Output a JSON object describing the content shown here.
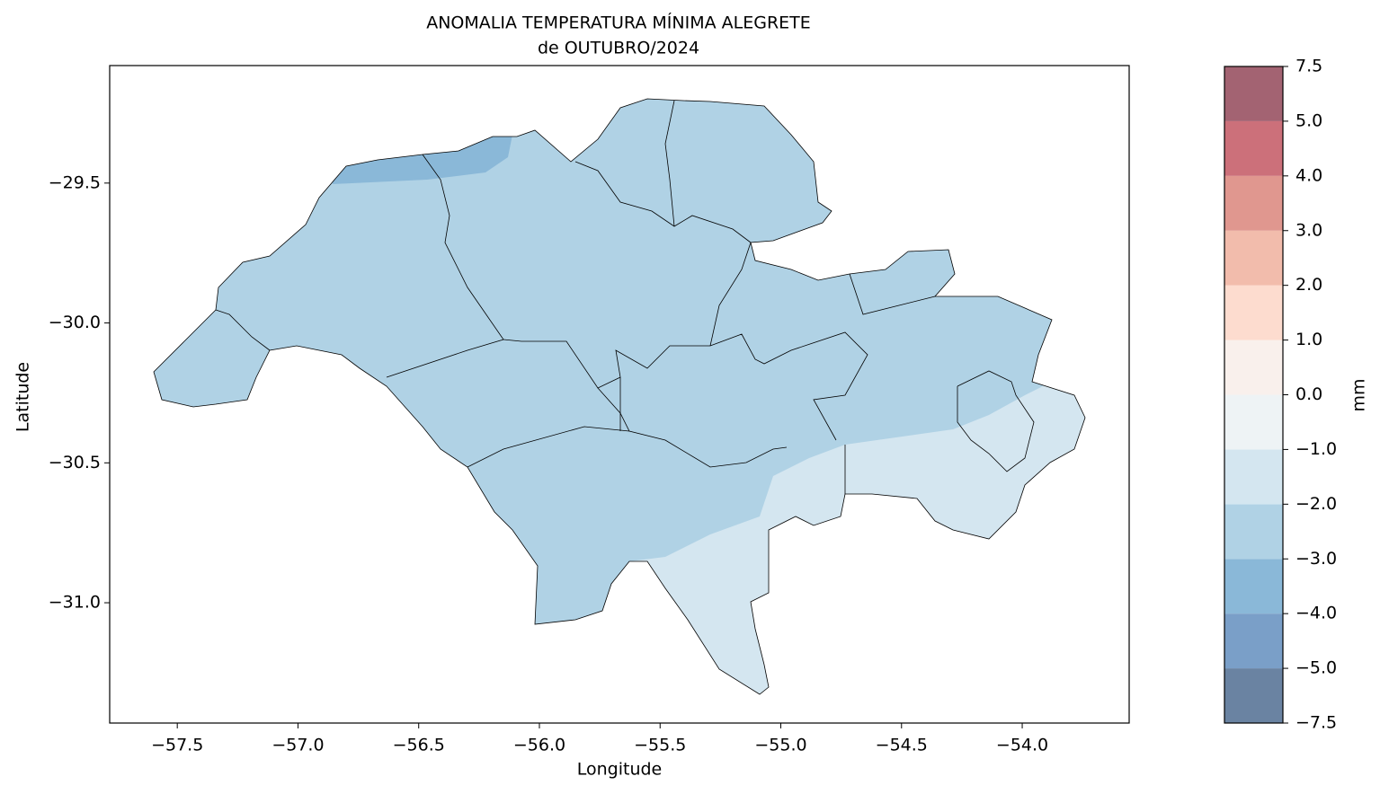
{
  "map": {
    "title": "ANOMALIA TEMPERATURA MÍNIMA ALEGRETE",
    "subtitle": "de OUTUBRO/2024",
    "xlabel": "Longitude",
    "ylabel": "Latitude",
    "xlim": [
      -57.78,
      -53.557
    ],
    "ylim": [
      -31.43,
      -29.08
    ],
    "xticks": [
      {
        "value": -57.5,
        "label": "−57.5"
      },
      {
        "value": -57.0,
        "label": "−57.0"
      },
      {
        "value": -56.5,
        "label": "−56.5"
      },
      {
        "value": -56.0,
        "label": "−56.0"
      },
      {
        "value": -55.5,
        "label": "−55.5"
      },
      {
        "value": -55.0,
        "label": "−55.0"
      },
      {
        "value": -54.5,
        "label": "−54.5"
      },
      {
        "value": -54.0,
        "label": "−54.0"
      }
    ],
    "yticks": [
      {
        "value": -29.5,
        "label": "−29.5"
      },
      {
        "value": -30.0,
        "label": "−30.0"
      },
      {
        "value": -30.5,
        "label": "−30.5"
      },
      {
        "value": -31.0,
        "label": "−31.0"
      }
    ],
    "colorbar": {
      "label": "mm",
      "ticks": [
        {
          "value": -7.5,
          "label": "−7.5"
        },
        {
          "value": -5.0,
          "label": "−5.0"
        },
        {
          "value": -4.0,
          "label": "−4.0"
        },
        {
          "value": -3.0,
          "label": "−3.0"
        },
        {
          "value": -2.0,
          "label": "−2.0"
        },
        {
          "value": -1.0,
          "label": "−1.0"
        },
        {
          "value": 0.0,
          "label": "0.0"
        },
        {
          "value": 1.0,
          "label": "1.0"
        },
        {
          "value": 2.0,
          "label": "2.0"
        },
        {
          "value": 3.0,
          "label": "3.0"
        },
        {
          "value": 4.0,
          "label": "4.0"
        },
        {
          "value": 5.0,
          "label": "5.0"
        },
        7.5
      ],
      "colors": [
        "#6a83a2",
        "#7a9fc8",
        "#8ab8d8",
        "#b0d2e5",
        "#d4e6f0",
        "#eef3f5",
        "#f9f0ec",
        "#fddccf",
        "#f2bcac",
        "#e0978f",
        "#cc707a",
        "#a36372"
      ]
    }
  }
}
